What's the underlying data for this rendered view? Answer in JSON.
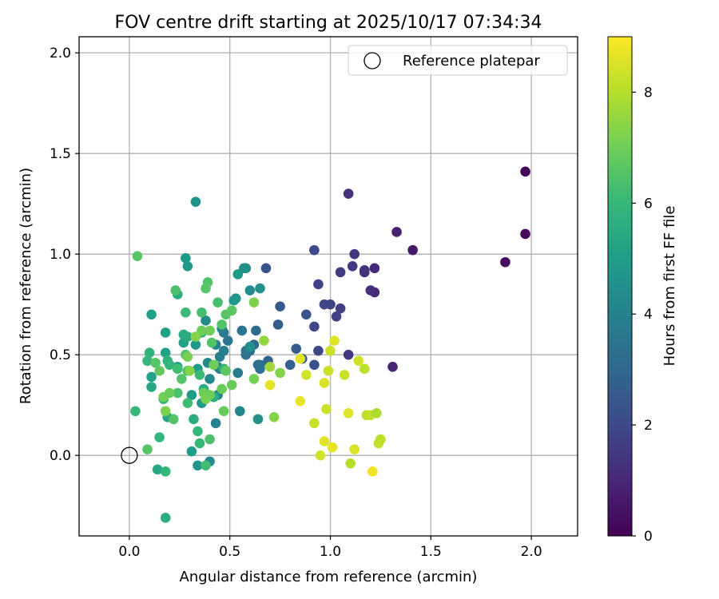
{
  "chart_data": {
    "type": "scatter",
    "title": "FOV centre drift starting at 2025/10/17 07:34:34",
    "xlabel": "Angular distance from reference (arcmin)",
    "ylabel": "Rotation from reference (arcmin)",
    "xlim": [
      -0.25,
      2.23
    ],
    "ylim": [
      -0.4,
      2.08
    ],
    "xticks": [
      0.0,
      0.5,
      1.0,
      1.5,
      2.0
    ],
    "yticks": [
      0.0,
      0.5,
      1.0,
      1.5,
      2.0
    ],
    "xtick_labels": [
      "0.0",
      "0.5",
      "1.0",
      "1.5",
      "2.0"
    ],
    "ytick_labels": [
      "0.0",
      "0.5",
      "1.0",
      "1.5",
      "2.0"
    ],
    "grid": true,
    "legend": {
      "position": "top-right",
      "label": "Reference platepar"
    },
    "reference_point": {
      "x": 0.0,
      "y": 0.0
    },
    "colorbar": {
      "label": "Hours from first FF file",
      "range": [
        0,
        9
      ],
      "ticks": [
        0,
        2,
        4,
        6,
        8
      ],
      "tick_labels": [
        "0",
        "2",
        "4",
        "6",
        "8"
      ],
      "colormap": "viridis",
      "stops": [
        "#440154",
        "#482878",
        "#3e4a89",
        "#31688e",
        "#26828e",
        "#1f9e89",
        "#35b779",
        "#6ece58",
        "#b5de2b",
        "#fde725"
      ]
    },
    "series": [
      {
        "name": "FOV centre",
        "points": [
          [
            1.97,
            1.41,
            0.1
          ],
          [
            1.97,
            1.1,
            0.2
          ],
          [
            1.87,
            0.96,
            0.3
          ],
          [
            1.41,
            1.02,
            0.6
          ],
          [
            1.33,
            1.11,
            0.8
          ],
          [
            1.31,
            0.44,
            0.9
          ],
          [
            1.22,
            0.93,
            1.0
          ],
          [
            1.22,
            0.81,
            1.1
          ],
          [
            1.2,
            0.82,
            1.2
          ],
          [
            1.17,
            0.92,
            1.3
          ],
          [
            1.17,
            0.91,
            1.3
          ],
          [
            1.12,
            1.0,
            1.4
          ],
          [
            1.11,
            0.94,
            1.5
          ],
          [
            1.09,
            1.3,
            1.2
          ],
          [
            1.09,
            0.5,
            1.5
          ],
          [
            1.05,
            0.91,
            1.6
          ],
          [
            1.05,
            0.73,
            1.7
          ],
          [
            1.03,
            0.69,
            1.7
          ],
          [
            1.0,
            0.75,
            1.8
          ],
          [
            0.97,
            0.75,
            1.9
          ],
          [
            0.94,
            0.85,
            1.8
          ],
          [
            0.94,
            0.52,
            1.9
          ],
          [
            0.92,
            0.64,
            1.9
          ],
          [
            0.92,
            1.02,
            2.0
          ],
          [
            0.92,
            0.45,
            2.3
          ],
          [
            0.88,
            0.7,
            2.3
          ],
          [
            0.86,
            0.48,
            2.5
          ],
          [
            0.83,
            0.53,
            2.6
          ],
          [
            0.8,
            0.45,
            2.7
          ],
          [
            0.75,
            0.74,
            2.5
          ],
          [
            0.74,
            0.65,
            2.6
          ],
          [
            0.69,
            0.47,
            2.9
          ],
          [
            0.68,
            0.93,
            2.3
          ],
          [
            0.65,
            0.45,
            3.2
          ],
          [
            0.63,
            0.62,
            3.1
          ],
          [
            0.64,
            0.45,
            3.3
          ],
          [
            0.65,
            0.43,
            3.4
          ],
          [
            0.62,
            0.55,
            3.2
          ],
          [
            0.6,
            0.52,
            3.2
          ],
          [
            0.58,
            0.5,
            3.4
          ],
          [
            0.58,
            0.52,
            3.5
          ],
          [
            0.56,
            0.62,
            3.5
          ],
          [
            0.54,
            0.41,
            3.7
          ],
          [
            0.49,
            0.57,
            3.5
          ],
          [
            0.47,
            0.61,
            3.7
          ],
          [
            0.47,
            0.52,
            3.8
          ],
          [
            0.46,
            0.63,
            3.8
          ],
          [
            0.45,
            0.43,
            3.8
          ],
          [
            0.45,
            0.49,
            3.9
          ],
          [
            0.43,
            0.55,
            4.0
          ],
          [
            0.44,
            0.44,
            4.0
          ],
          [
            0.44,
            0.3,
            4.1
          ],
          [
            0.43,
            0.16,
            4.0
          ],
          [
            0.4,
            0.38,
            4.2
          ],
          [
            0.39,
            0.46,
            4.3
          ],
          [
            0.38,
            0.67,
            4.2
          ],
          [
            0.4,
            -0.03,
            4.3
          ],
          [
            0.55,
            0.22,
            4.1
          ],
          [
            0.57,
            0.93,
            4.5
          ],
          [
            0.58,
            0.93,
            4.5
          ],
          [
            0.6,
            0.82,
            4.4
          ],
          [
            0.6,
            0.54,
            4.5
          ],
          [
            0.65,
            0.83,
            4.5
          ],
          [
            0.64,
            0.18,
            4.5
          ],
          [
            0.53,
            0.78,
            4.7
          ],
          [
            0.52,
            0.77,
            4.8
          ],
          [
            0.54,
            0.9,
            4.9
          ],
          [
            0.33,
            1.26,
            4.6
          ],
          [
            0.34,
            -0.05,
            4.7
          ],
          [
            0.28,
            0.98,
            4.8
          ],
          [
            0.29,
            0.94,
            4.8
          ],
          [
            0.33,
            0.55,
            4.8
          ],
          [
            0.34,
            0.43,
            4.9
          ],
          [
            0.36,
            0.26,
            4.8
          ],
          [
            0.31,
            0.3,
            4.9
          ],
          [
            0.31,
            0.02,
            5.0
          ],
          [
            0.27,
            0.56,
            5.2
          ],
          [
            0.24,
            0.44,
            5.0
          ],
          [
            0.18,
            0.61,
            5.1
          ],
          [
            0.18,
            0.51,
            5.1
          ],
          [
            0.11,
            0.7,
            5.1
          ],
          [
            0.11,
            0.39,
            5.1
          ],
          [
            0.11,
            0.34,
            5.3
          ],
          [
            0.14,
            -0.07,
            5.3
          ],
          [
            0.19,
            0.19,
            5.3
          ],
          [
            0.24,
            0.8,
            5.6
          ],
          [
            0.27,
            0.6,
            5.5
          ],
          [
            0.29,
            0.59,
            5.5
          ],
          [
            0.32,
            0.18,
            5.6
          ],
          [
            0.36,
            0.61,
            5.7
          ],
          [
            0.37,
            0.33,
            5.5
          ],
          [
            0.42,
            0.29,
            5.7
          ],
          [
            0.47,
            0.43,
            5.8
          ],
          [
            0.19,
            0.47,
            5.8
          ],
          [
            0.2,
            0.45,
            5.9
          ],
          [
            0.1,
            0.51,
            5.8
          ],
          [
            0.09,
            0.47,
            5.9
          ],
          [
            0.17,
            0.28,
            5.9
          ],
          [
            0.15,
            0.09,
            5.9
          ],
          [
            0.18,
            -0.31,
            5.6
          ],
          [
            0.18,
            -0.08,
            6.0
          ],
          [
            0.34,
            0.12,
            6.0
          ],
          [
            0.35,
            0.06,
            6.0
          ],
          [
            0.4,
            0.08,
            6.4
          ],
          [
            0.38,
            -0.05,
            6.2
          ],
          [
            0.35,
            0.4,
            6.1
          ],
          [
            0.28,
            0.71,
            6.1
          ],
          [
            0.23,
            0.82,
            6.4
          ],
          [
            0.24,
            0.43,
            6.2
          ],
          [
            0.24,
            0.31,
            6.4
          ],
          [
            0.22,
            0.18,
            6.5
          ],
          [
            0.26,
            0.38,
            6.5
          ],
          [
            0.28,
            0.5,
            6.5
          ],
          [
            0.29,
            0.26,
            6.2
          ],
          [
            0.29,
            0.42,
            6.3
          ],
          [
            0.36,
            0.71,
            6.3
          ],
          [
            0.39,
            0.86,
            6.5
          ],
          [
            0.38,
            0.83,
            6.6
          ],
          [
            0.41,
            0.56,
            6.5
          ],
          [
            0.44,
            0.76,
            6.3
          ],
          [
            0.46,
            0.65,
            6.5
          ],
          [
            0.48,
            0.7,
            6.6
          ],
          [
            0.51,
            0.72,
            6.7
          ],
          [
            0.48,
            0.42,
            6.7
          ],
          [
            0.51,
            0.35,
            6.9
          ],
          [
            0.46,
            0.33,
            6.9
          ],
          [
            0.47,
            0.22,
            6.9
          ],
          [
            0.4,
            0.3,
            7.0
          ],
          [
            0.37,
            0.31,
            7.0
          ],
          [
            0.38,
            0.28,
            7.1
          ],
          [
            0.36,
            0.62,
            7.0
          ],
          [
            0.4,
            0.62,
            7.0
          ],
          [
            0.04,
            0.99,
            6.6
          ],
          [
            0.03,
            0.22,
            6.0
          ],
          [
            0.09,
            0.03,
            6.6
          ],
          [
            0.13,
            0.46,
            6.6
          ],
          [
            0.15,
            0.42,
            6.8
          ],
          [
            0.17,
            0.29,
            7.0
          ],
          [
            0.18,
            0.22,
            7.2
          ],
          [
            0.2,
            0.31,
            6.9
          ],
          [
            0.29,
            0.49,
            7.1
          ],
          [
            0.3,
            0.42,
            7.3
          ],
          [
            0.33,
            0.59,
            7.3
          ],
          [
            0.42,
            0.45,
            7.0
          ],
          [
            0.62,
            0.76,
            7.2
          ],
          [
            0.62,
            0.38,
            7.1
          ],
          [
            0.67,
            0.57,
            7.5
          ],
          [
            0.72,
            0.19,
            7.3
          ],
          [
            0.75,
            0.41,
            7.3
          ],
          [
            0.7,
            0.44,
            7.7
          ],
          [
            0.7,
            0.35,
            8.7
          ],
          [
            0.85,
            0.27,
            8.7
          ],
          [
            0.85,
            0.48,
            8.6
          ],
          [
            0.88,
            0.4,
            8.4
          ],
          [
            0.92,
            0.16,
            8.3
          ],
          [
            0.95,
            0.0,
            8.4
          ],
          [
            0.97,
            0.07,
            8.6
          ],
          [
            0.97,
            0.36,
            8.5
          ],
          [
            0.98,
            0.23,
            8.3
          ],
          [
            0.99,
            0.42,
            8.3
          ],
          [
            1.0,
            0.52,
            8.3
          ],
          [
            1.01,
            0.04,
            8.7
          ],
          [
            1.02,
            0.57,
            8.6
          ],
          [
            1.07,
            0.4,
            8.3
          ],
          [
            1.09,
            0.21,
            8.6
          ],
          [
            1.1,
            -0.04,
            8.0
          ],
          [
            1.12,
            0.03,
            8.5
          ],
          [
            1.14,
            0.47,
            8.4
          ],
          [
            1.17,
            0.43,
            8.1
          ],
          [
            1.18,
            0.2,
            8.1
          ],
          [
            1.2,
            0.2,
            8.2
          ],
          [
            1.21,
            -0.08,
            8.8
          ],
          [
            1.23,
            0.21,
            7.9
          ],
          [
            1.24,
            0.06,
            8.2
          ],
          [
            1.25,
            0.08,
            8.1
          ]
        ]
      }
    ]
  }
}
